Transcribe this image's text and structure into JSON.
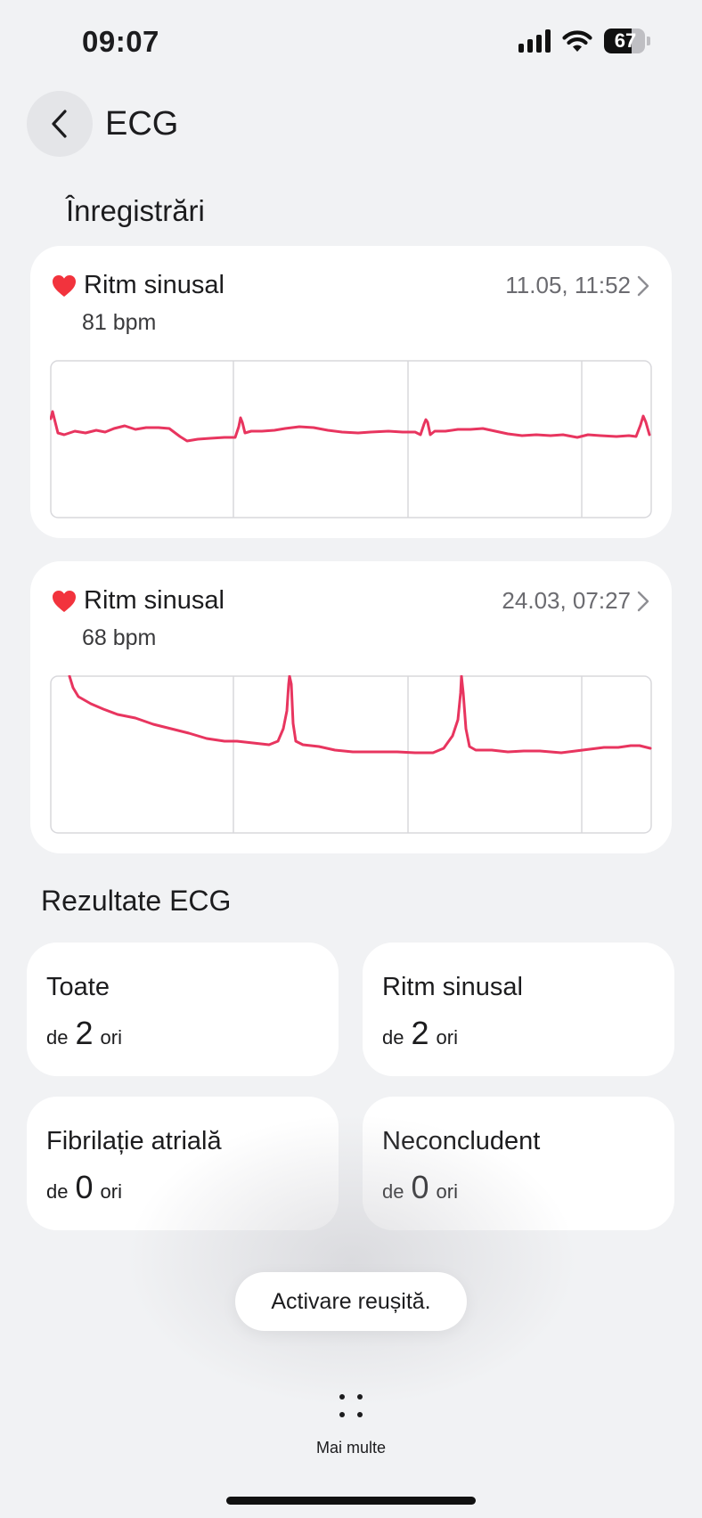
{
  "status_bar": {
    "time": "09:07",
    "battery": "67",
    "battery_level": 0.67
  },
  "header": {
    "title": "ECG",
    "back_icon": "chevron-left-icon"
  },
  "recordings": {
    "title": "Înregistrări",
    "items": [
      {
        "label": "Ritm sinusal",
        "bpm": "81 bpm",
        "date": "11.05, 11:52"
      },
      {
        "label": "Ritm sinusal",
        "bpm": "68 bpm",
        "date": "24.03, 07:27"
      }
    ]
  },
  "results": {
    "title": "Rezultate ECG",
    "items": [
      {
        "label": "Toate",
        "prefix": "de",
        "count": "2",
        "suffix": "ori"
      },
      {
        "label": "Ritm sinusal",
        "prefix": "de",
        "count": "2",
        "suffix": "ori"
      },
      {
        "label": "Fibrilație atrială",
        "prefix": "de",
        "count": "0",
        "suffix": "ori"
      },
      {
        "label": "Neconcludent",
        "prefix": "de",
        "count": "0",
        "suffix": "ori"
      }
    ]
  },
  "toast": "Activare reușită.",
  "bottom": {
    "more_label": "Mai multe"
  },
  "colors": {
    "ecg_line": "#e8355f",
    "heart": "#f2333d",
    "background": "#f1f2f4"
  }
}
